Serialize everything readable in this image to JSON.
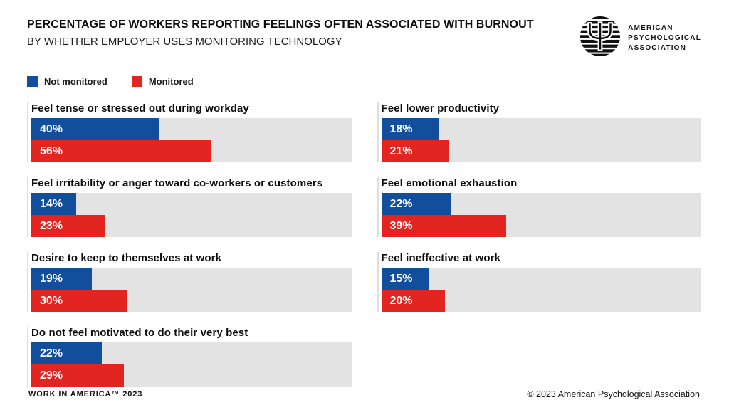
{
  "header": {
    "title": "PERCENTAGE OF WORKERS REPORTING FEELINGS OFTEN ASSOCIATED WITH BURNOUT",
    "subtitle": "BY WHETHER EMPLOYER USES MONITORING TECHNOLOGY"
  },
  "logo": {
    "icon": "apa-psi-logo",
    "line1": "AMERICAN",
    "line2": "PSYCHOLOGICAL",
    "line3": "ASSOCIATION"
  },
  "legend": {
    "items": [
      {
        "label": "Not monitored",
        "color": "#114f9d"
      },
      {
        "label": "Monitored",
        "color": "#e22521"
      }
    ]
  },
  "chart_data": {
    "type": "bar",
    "orientation": "horizontal",
    "title": "Percentage of workers reporting feelings often associated with burnout",
    "subtitle": "By whether employer uses monitoring technology",
    "series": [
      {
        "name": "Not monitored",
        "color": "#114f9d"
      },
      {
        "name": "Monitored",
        "color": "#e22521"
      }
    ],
    "xlim": [
      0,
      100
    ],
    "value_unit": "%",
    "track_color": "#e3e3e3",
    "columns": [
      {
        "groups": [
          {
            "label": "Feel tense or stressed out during workday",
            "values": [
              40,
              56
            ],
            "labels": [
              "40%",
              "56%"
            ]
          },
          {
            "label": "Feel irritability or anger toward co-workers or customers",
            "values": [
              14,
              23
            ],
            "labels": [
              "14%",
              "23%"
            ]
          },
          {
            "label": "Desire to keep to themselves at work",
            "values": [
              19,
              30
            ],
            "labels": [
              "19%",
              "30%"
            ]
          },
          {
            "label": "Do not feel motivated to do their very best",
            "values": [
              22,
              29
            ],
            "labels": [
              "22%",
              "29%"
            ]
          }
        ]
      },
      {
        "groups": [
          {
            "label": "Feel lower productivity",
            "values": [
              18,
              21
            ],
            "labels": [
              "18%",
              "21%"
            ]
          },
          {
            "label": "Feel emotional exhaustion",
            "values": [
              22,
              39
            ],
            "labels": [
              "22%",
              "39%"
            ]
          },
          {
            "label": "Feel ineffective at work",
            "values": [
              15,
              20
            ],
            "labels": [
              "15%",
              "20%"
            ]
          }
        ]
      }
    ]
  },
  "footer": {
    "left": "WORK IN AMERICA™ 2023",
    "right": "© 2023 American Psychological Association"
  }
}
